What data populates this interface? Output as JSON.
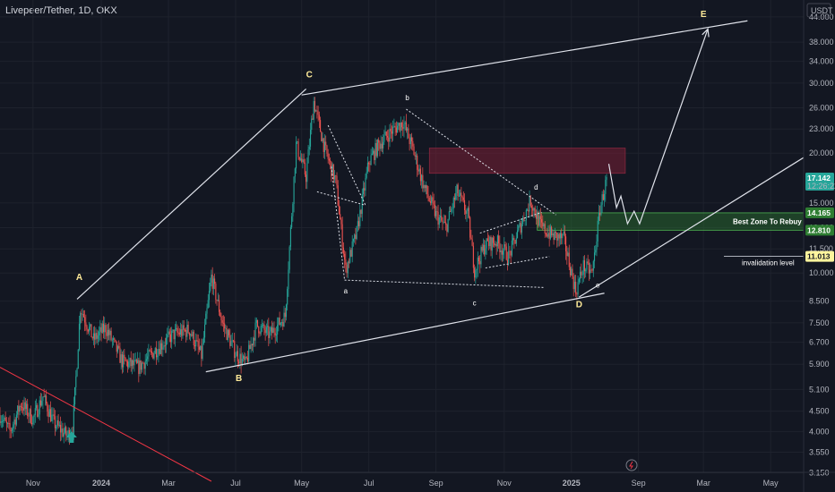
{
  "header": {
    "symbol_title": "Livepeer/Tether, 1D, OKX",
    "currency_button": "USDT"
  },
  "colors": {
    "background": "#131722",
    "up": "#26a69a",
    "down": "#ef5350",
    "resistance_zone": "#7a1f35",
    "rebuy_zone": "#2e7d32",
    "trend_red": "#f23645"
  },
  "chart_data": {
    "type": "candlestick",
    "title": "Livepeer/Tether, 1D, OKX",
    "y_scale": "log",
    "ylim": [
      3.0,
      48.0
    ],
    "y_ticks": [
      "44.000",
      "38.000",
      "34.000",
      "30.000",
      "26.000",
      "23.000",
      "20.000",
      "15.000",
      "13.000",
      "11.500",
      "10.000",
      "8.500",
      "7.500",
      "6.700",
      "5.900",
      "5.100",
      "4.500",
      "4.000",
      "3.550",
      "3.150"
    ],
    "x_ticks": [
      "Jul",
      "Sep",
      "Nov",
      "2024",
      "Mar",
      "May",
      "Jul",
      "Sep",
      "Nov",
      "2025",
      "Mar",
      "May"
    ],
    "price_path": [
      {
        "date": "2023-06-01",
        "price": 4.4
      },
      {
        "date": "2023-06-10",
        "price": 4.0
      },
      {
        "date": "2023-06-20",
        "price": 4.7
      },
      {
        "date": "2023-07-01",
        "price": 4.3
      },
      {
        "date": "2023-07-10",
        "price": 4.9
      },
      {
        "date": "2023-07-20",
        "price": 4.2
      },
      {
        "date": "2023-08-01",
        "price": 3.9
      },
      {
        "date": "2023-08-06",
        "price": 4.1
      },
      {
        "date": "2023-08-10",
        "price": 6.0
      },
      {
        "date": "2023-08-13",
        "price": 8.2
      },
      {
        "date": "2023-08-25",
        "price": 6.8
      },
      {
        "date": "2023-09-05",
        "price": 7.3
      },
      {
        "date": "2023-09-20",
        "price": 6.0
      },
      {
        "date": "2023-10-05",
        "price": 5.8
      },
      {
        "date": "2023-10-20",
        "price": 6.4
      },
      {
        "date": "2023-11-05",
        "price": 7.0
      },
      {
        "date": "2023-11-20",
        "price": 7.2
      },
      {
        "date": "2023-12-01",
        "price": 6.2
      },
      {
        "date": "2023-12-10",
        "price": 9.8
      },
      {
        "date": "2023-12-20",
        "price": 7.5
      },
      {
        "date": "2024-01-01",
        "price": 6.3
      },
      {
        "date": "2024-01-10",
        "price": 5.9
      },
      {
        "date": "2024-01-20",
        "price": 7.4
      },
      {
        "date": "2024-02-01",
        "price": 7.0
      },
      {
        "date": "2024-02-15",
        "price": 7.8
      },
      {
        "date": "2024-02-25",
        "price": 21.0
      },
      {
        "date": "2024-03-05",
        "price": 17.5
      },
      {
        "date": "2024-03-12",
        "price": 27.0
      },
      {
        "date": "2024-03-22",
        "price": 20.5
      },
      {
        "date": "2024-04-01",
        "price": 17.0
      },
      {
        "date": "2024-04-10",
        "price": 10.2
      },
      {
        "date": "2024-04-20",
        "price": 12.6
      },
      {
        "date": "2024-05-01",
        "price": 19.0
      },
      {
        "date": "2024-05-10",
        "price": 21.0
      },
      {
        "date": "2024-05-20",
        "price": 22.5
      },
      {
        "date": "2024-06-01",
        "price": 24.0
      },
      {
        "date": "2024-06-10",
        "price": 20.5
      },
      {
        "date": "2024-06-20",
        "price": 16.5
      },
      {
        "date": "2024-07-01",
        "price": 14.0
      },
      {
        "date": "2024-07-10",
        "price": 13.0
      },
      {
        "date": "2024-07-20",
        "price": 16.0
      },
      {
        "date": "2024-07-30",
        "price": 14.0
      },
      {
        "date": "2024-08-05",
        "price": 10.2
      },
      {
        "date": "2024-08-15",
        "price": 11.8
      },
      {
        "date": "2024-08-25",
        "price": 12.0
      },
      {
        "date": "2024-09-05",
        "price": 11.0
      },
      {
        "date": "2024-09-15",
        "price": 13.0
      },
      {
        "date": "2024-09-25",
        "price": 15.2
      },
      {
        "date": "2024-10-05",
        "price": 13.0
      },
      {
        "date": "2024-10-15",
        "price": 12.4
      },
      {
        "date": "2024-10-25",
        "price": 12.2
      },
      {
        "date": "2024-11-05",
        "price": 9.0
      },
      {
        "date": "2024-11-12",
        "price": 10.4
      },
      {
        "date": "2024-11-20",
        "price": 10.0
      },
      {
        "date": "2024-11-27",
        "price": 14.5
      },
      {
        "date": "2024-12-03",
        "price": 17.142
      }
    ],
    "last_price": "17.142",
    "countdown": "12:26:22",
    "zones": [
      {
        "name": "resistance",
        "from": "2024-06-25",
        "to": "2024-12-20",
        "low": 17.8,
        "high": 20.6
      },
      {
        "name": "best_rebuy",
        "from": "2024-10-01",
        "to": "2025-05-31",
        "low": 12.81,
        "high": 14.165,
        "label": "Best Zone To Rebuy",
        "label_top": "14.165",
        "label_bottom": "12.810"
      }
    ],
    "invalidation": {
      "value": 11.013,
      "label": "invalidation level",
      "price_label": "11.013"
    },
    "wave_labels": [
      {
        "text": "A",
        "date": "2023-08-12",
        "price": 9.6
      },
      {
        "text": "B",
        "date": "2024-01-04",
        "price": 5.35
      },
      {
        "text": "C",
        "date": "2024-03-08",
        "price": 31.0
      },
      {
        "text": "D",
        "date": "2024-11-08",
        "price": 8.2
      },
      {
        "text": "E",
        "date": "2025-03-01",
        "price": 44.0
      }
    ],
    "subwave_labels": [
      {
        "text": "a",
        "date": "2024-04-10",
        "price": 8.9
      },
      {
        "text": "b",
        "date": "2024-06-05",
        "price": 27.2
      },
      {
        "text": "c",
        "date": "2024-08-05",
        "price": 8.3
      },
      {
        "text": "d",
        "date": "2024-09-30",
        "price": 16.2
      },
      {
        "text": "e",
        "date": "2024-11-25",
        "price": 9.2
      }
    ],
    "channel_lines": [
      {
        "from": {
          "date": "2023-08-10",
          "price": 8.6
        },
        "to": {
          "date": "2024-03-05",
          "price": 29.0
        }
      },
      {
        "from": {
          "date": "2024-03-01",
          "price": 28.0
        },
        "to": {
          "date": "2025-04-10",
          "price": 43.0
        }
      },
      {
        "from": {
          "date": "2023-12-05",
          "price": 5.65
        },
        "to": {
          "date": "2024-12-01",
          "price": 8.9
        }
      },
      {
        "from": {
          "date": "2024-11-08",
          "price": 8.7
        },
        "to": {
          "date": "2025-05-31",
          "price": 19.5
        }
      }
    ],
    "red_trendline": {
      "from": {
        "date": "2023-06-01",
        "price": 5.8
      },
      "to": {
        "date": "2023-12-10",
        "price": 3.0
      }
    },
    "projection": [
      {
        "date": "2024-12-05",
        "price": 18.8
      },
      {
        "date": "2024-12-12",
        "price": 14.6
      },
      {
        "date": "2024-12-16",
        "price": 15.6
      },
      {
        "date": "2024-12-22",
        "price": 13.3
      },
      {
        "date": "2024-12-28",
        "price": 14.3
      },
      {
        "date": "2025-01-02",
        "price": 13.3
      },
      {
        "date": "2025-03-05",
        "price": 41.0
      }
    ],
    "volatility_icon": "lightning-circle-icon"
  }
}
